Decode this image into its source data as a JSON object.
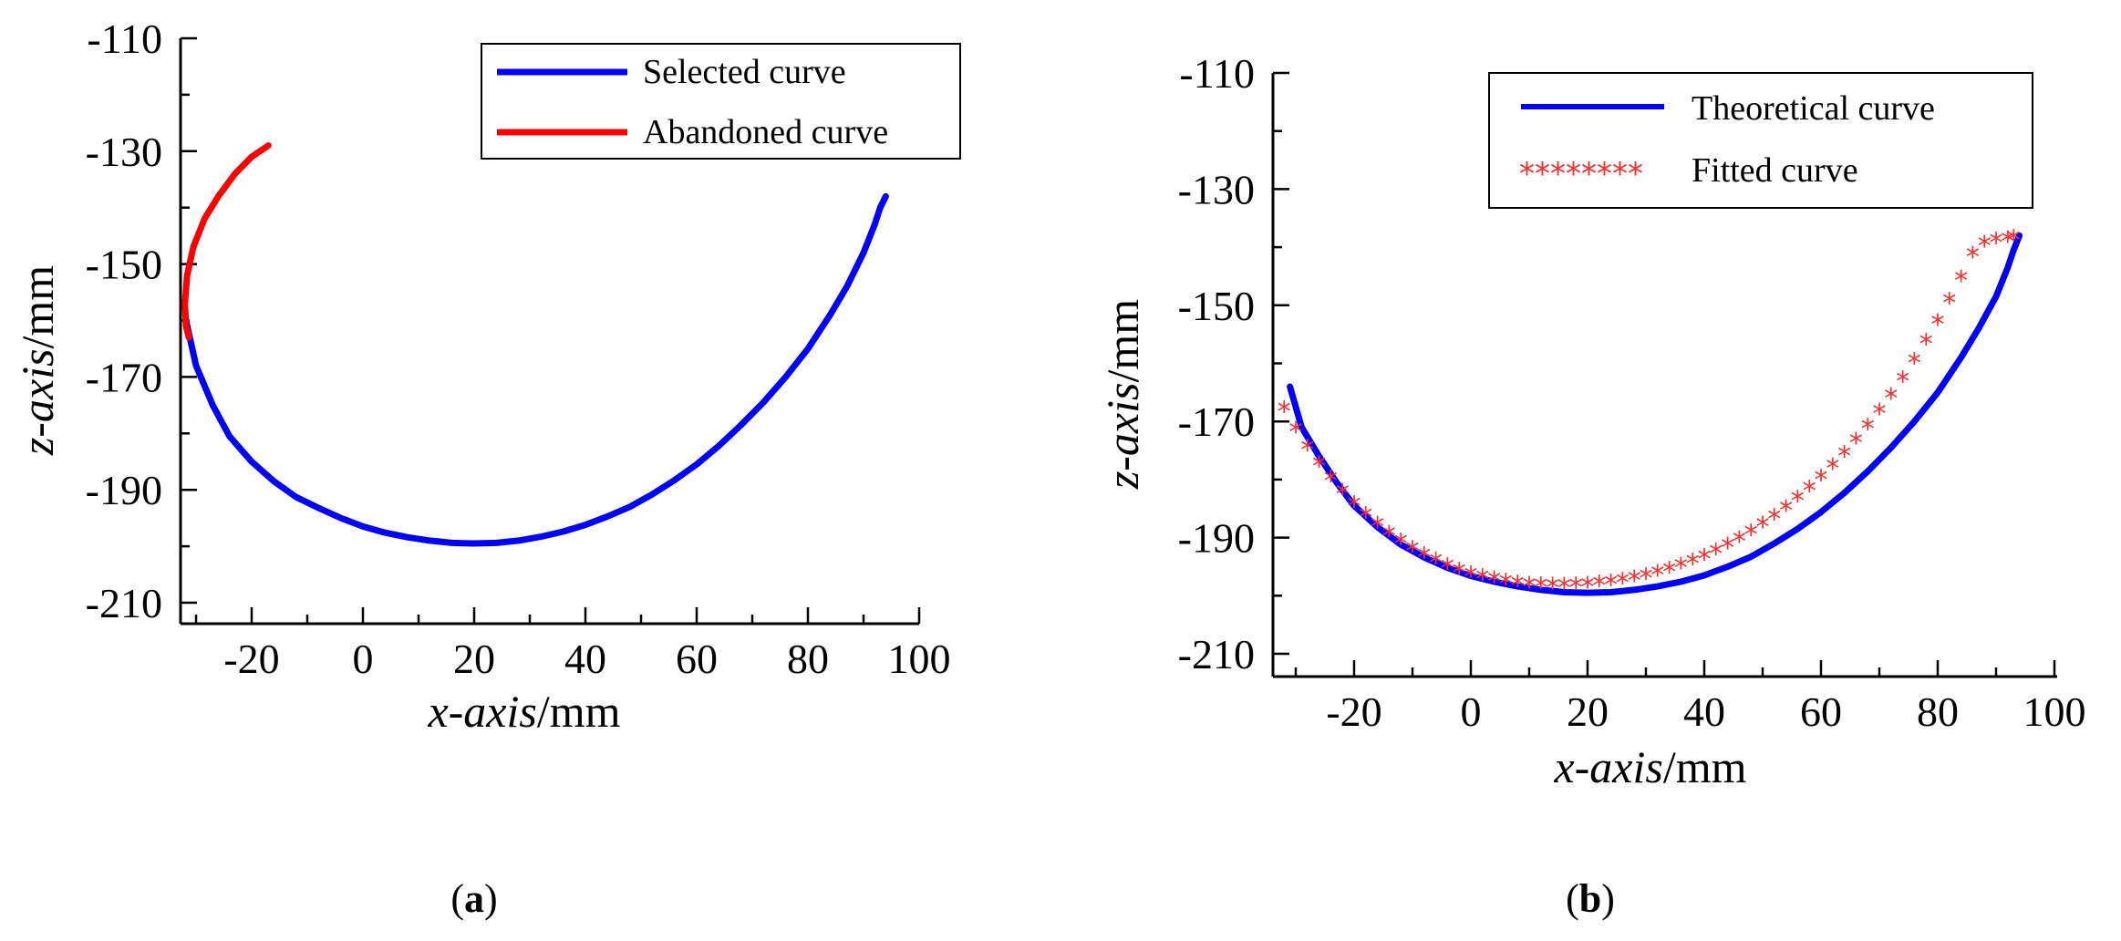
{
  "chart_data": [
    {
      "type": "line",
      "panel_label_prefix": "(",
      "panel_label_letter": "a",
      "panel_label_suffix": ")",
      "xlabel_italic": "x-axis",
      "xlabel_unit": "/mm",
      "ylabel_italic": "z-axis",
      "ylabel_unit": "/mm",
      "xlim": [
        -32,
        100
      ],
      "ylim": [
        -214,
        -110
      ],
      "xticks": [
        -20,
        0,
        20,
        40,
        60,
        80,
        100
      ],
      "yticks": [
        -110,
        -130,
        -150,
        -170,
        -190,
        -210
      ],
      "legend_position": "top-right",
      "series": [
        {
          "name": "Selected curve",
          "color": "#0000ff",
          "style": "line",
          "x": [
            -31.8,
            -30,
            -27,
            -24,
            -20,
            -16,
            -12,
            -8,
            -4,
            0,
            4,
            8,
            12,
            16,
            20,
            24,
            28,
            32,
            36,
            40,
            44,
            48,
            52,
            56,
            60,
            64,
            68,
            72,
            76,
            80,
            84,
            87,
            90,
            92,
            93,
            94
          ],
          "y": [
            -160,
            -168,
            -175,
            -180.5,
            -185,
            -188.5,
            -191.3,
            -193.2,
            -195,
            -196.5,
            -197.6,
            -198.4,
            -199,
            -199.4,
            -199.5,
            -199.4,
            -199,
            -198.3,
            -197.4,
            -196.2,
            -194.7,
            -193,
            -190.8,
            -188.3,
            -185.5,
            -182.2,
            -178.5,
            -174.5,
            -170,
            -165,
            -159,
            -154,
            -148,
            -143,
            -140,
            -138
          ]
        },
        {
          "name": "Abandoned curve",
          "color": "#ff0000",
          "style": "line",
          "x": [
            -17,
            -20,
            -23,
            -26,
            -28.5,
            -30.5,
            -31.6,
            -32,
            -31.8,
            -31.3
          ],
          "y": [
            -129,
            -131,
            -134,
            -138,
            -142,
            -147,
            -152,
            -157,
            -161,
            -163
          ]
        }
      ]
    },
    {
      "type": "line",
      "panel_label_prefix": "(",
      "panel_label_letter": "b",
      "panel_label_suffix": ")",
      "xlabel_italic": "x-axis",
      "xlabel_unit": "/mm",
      "ylabel_italic": "z-axis",
      "ylabel_unit": "/mm",
      "xlim": [
        -32,
        100
      ],
      "ylim": [
        -214,
        -110
      ],
      "xticks": [
        -20,
        0,
        20,
        40,
        60,
        80,
        100
      ],
      "yticks": [
        -110,
        -130,
        -150,
        -170,
        -190,
        -210
      ],
      "legend_position": "top-right",
      "series": [
        {
          "name": "Theoretical curve",
          "color": "#0000ff",
          "style": "line",
          "x": [
            -31,
            -29,
            -26,
            -23,
            -20,
            -16,
            -12,
            -8,
            -4,
            0,
            4,
            8,
            12,
            16,
            20,
            24,
            28,
            32,
            36,
            40,
            44,
            48,
            52,
            56,
            60,
            64,
            68,
            72,
            76,
            80,
            84,
            87,
            90,
            92,
            93,
            94
          ],
          "y": [
            -164,
            -171,
            -176,
            -180.5,
            -184.5,
            -188.2,
            -191.2,
            -193.4,
            -195.2,
            -196.6,
            -197.6,
            -198.4,
            -199,
            -199.4,
            -199.5,
            -199.4,
            -199,
            -198.4,
            -197.6,
            -196.5,
            -195,
            -193.3,
            -191,
            -188.5,
            -185.6,
            -182.3,
            -178.6,
            -174.5,
            -170,
            -165,
            -159,
            -154,
            -148.5,
            -143.5,
            -140.5,
            -138
          ]
        },
        {
          "name": "Fitted curve",
          "color": "#ff2a2a",
          "style": "markers",
          "marker": "*",
          "x": [
            -32,
            -30,
            -28,
            -26,
            -24,
            -22,
            -20,
            -18,
            -16,
            -14,
            -12,
            -10,
            -8,
            -6,
            -4,
            -2,
            0,
            2,
            4,
            6,
            8,
            10,
            12,
            14,
            16,
            18,
            20,
            22,
            24,
            26,
            28,
            30,
            32,
            34,
            36,
            38,
            40,
            42,
            44,
            46,
            48,
            50,
            52,
            54,
            56,
            58,
            60,
            62,
            64,
            66,
            68,
            70,
            72,
            74,
            76,
            78,
            80,
            82,
            84,
            86,
            88,
            90,
            92,
            93
          ],
          "y": [
            -168,
            -171.5,
            -174.6,
            -177.4,
            -179.9,
            -182.2,
            -184.3,
            -186.2,
            -187.9,
            -189.4,
            -190.8,
            -192,
            -193.1,
            -194.1,
            -195,
            -195.8,
            -196.4,
            -196.9,
            -197.3,
            -197.7,
            -198,
            -198.2,
            -198.3,
            -198.4,
            -198.4,
            -198.3,
            -198.2,
            -198,
            -197.8,
            -197.5,
            -197.1,
            -196.7,
            -196.2,
            -195.6,
            -194.9,
            -194.2,
            -193.4,
            -192.5,
            -191.5,
            -190.4,
            -189.2,
            -187.9,
            -186.5,
            -185,
            -183.4,
            -181.7,
            -179.8,
            -177.8,
            -175.7,
            -173.4,
            -171,
            -168.4,
            -165.7,
            -162.8,
            -159.7,
            -156.4,
            -153,
            -149.3,
            -145.5,
            -141.4,
            -139.5,
            -139,
            -138.7,
            -138.5
          ]
        }
      ]
    }
  ]
}
